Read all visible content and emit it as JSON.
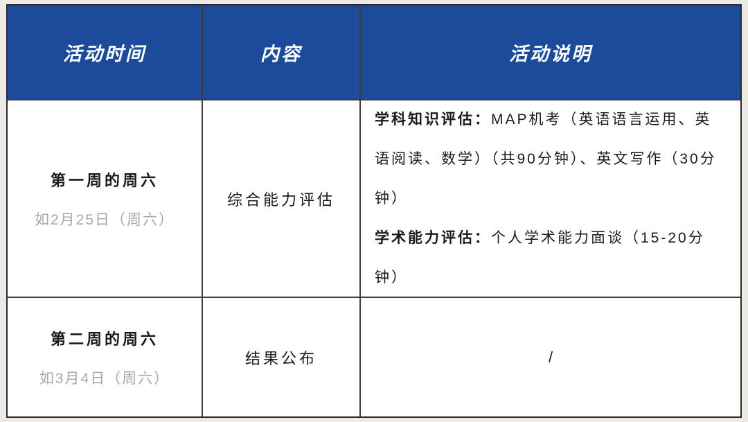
{
  "table": {
    "header": {
      "time": "活动时间",
      "content": "内容",
      "description": "活动说明"
    },
    "rows": [
      {
        "time_main": "第一周的周六",
        "time_sub": "如2月25日（周六）",
        "content": "综合能力评估",
        "desc": [
          {
            "label": "学科知识评估：",
            "body": "MAP机考（英语语言运用、英语阅读、数学）（共90分钟）、英文写作（30分钟）"
          },
          {
            "label": "学术能力评估：",
            "body": "个人学术能力面谈（15-20分钟）"
          }
        ]
      },
      {
        "time_main": "第二周的周六",
        "time_sub": "如3月4日（周六）",
        "content": "结果公布",
        "desc_slash": "/"
      }
    ],
    "colors": {
      "header_bg": "#1C4B9B",
      "header_text": "#FFFFFF",
      "border": "#3d3d3d",
      "sub_text": "#A8A8A8",
      "body_text": "#1A1A1A",
      "page_bg": "#EDEAE6"
    }
  }
}
